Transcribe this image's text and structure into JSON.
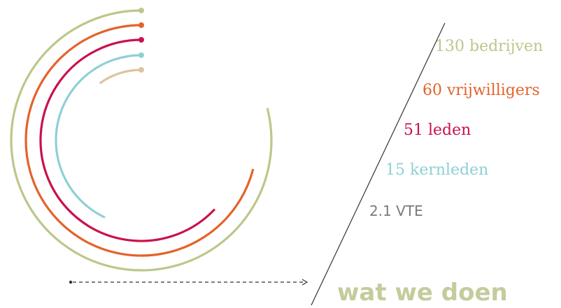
{
  "chart_data": {
    "type": "radial-bar",
    "title": "",
    "series": [
      {
        "label": "130 bedrijven",
        "value": 130,
        "color": "#bcc78a"
      },
      {
        "label": "60 vrijwilligers",
        "value": 60,
        "color": "#e4622a"
      },
      {
        "label": "51 leden",
        "value": 51,
        "color": "#c9124a"
      },
      {
        "label": "15 kernleden",
        "value": 15,
        "color": "#8ed0d5"
      },
      {
        "label": "2.1 VTE",
        "value": 2.1,
        "color": "#dcc4a0"
      }
    ],
    "arc_fractions": [
      0.79,
      0.71,
      0.63,
      0.43,
      0.1
    ]
  },
  "labels": {
    "vte_color": "#7a7a7a"
  },
  "cta": {
    "text": "wat we doen",
    "color": "#c3cc9c",
    "arrow_color": "#333333",
    "divider_color": "#333333"
  }
}
